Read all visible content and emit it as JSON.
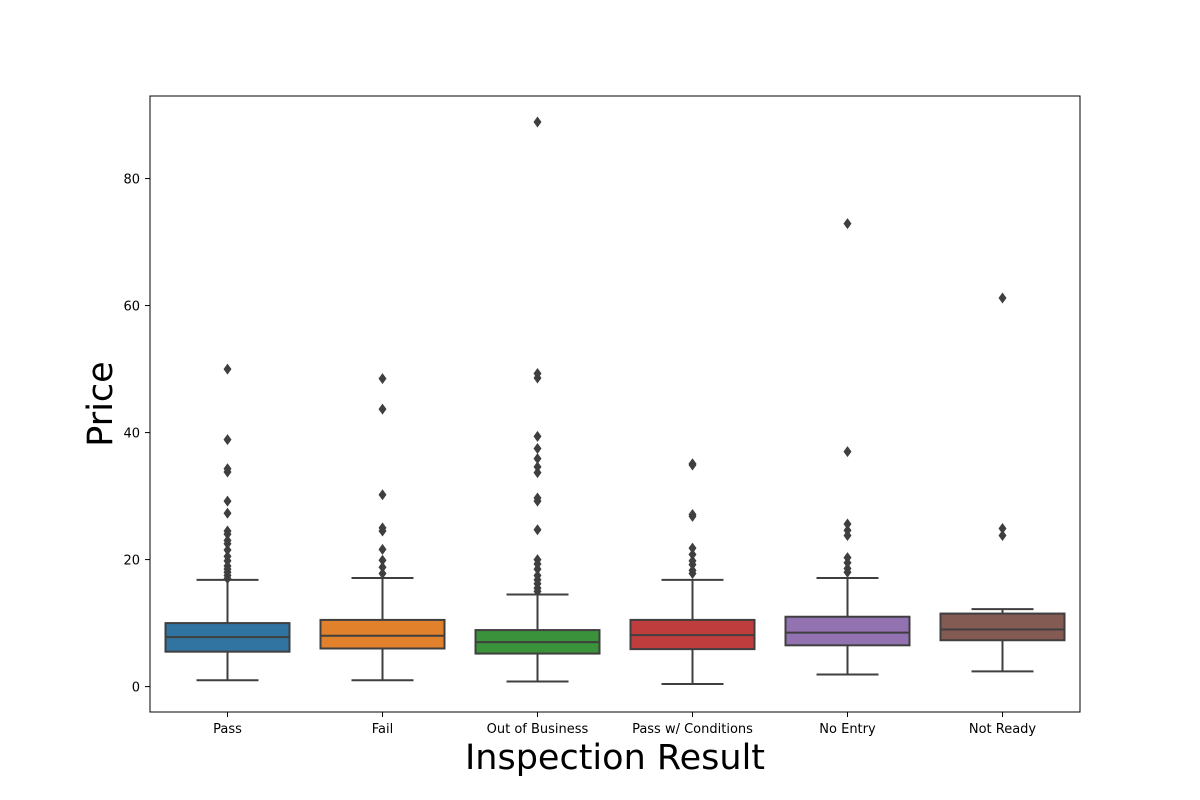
{
  "chart_data": {
    "type": "box",
    "title": "",
    "xlabel": "Inspection Result",
    "ylabel": "Price",
    "ylim": [
      -4,
      93
    ],
    "yticks": [
      0,
      20,
      40,
      60,
      80
    ],
    "grid": false,
    "categories": [
      "Pass",
      "Fail",
      "Out of Business",
      "Pass w/ Conditions",
      "No Entry",
      "Not Ready"
    ],
    "colors": [
      "#3274a1",
      "#e1812c",
      "#3a923a",
      "#c03d3e",
      "#9372b2",
      "#845b53"
    ],
    "edge_color": "#3f3f3f",
    "boxes": [
      {
        "whisker_low": 1.0,
        "q1": 5.5,
        "median": 7.8,
        "q3": 10.0,
        "whisker_high": 16.8,
        "outliers": [
          17.0,
          17.5,
          18.0,
          18.5,
          19.0,
          19.8,
          20.5,
          21.5,
          22.5,
          23.0,
          24.0,
          24.5,
          27.3,
          29.2,
          33.8,
          34.3,
          38.9,
          50.0
        ]
      },
      {
        "whisker_low": 1.0,
        "q1": 6.0,
        "median": 8.0,
        "q3": 10.5,
        "whisker_high": 17.1,
        "outliers": [
          17.8,
          18.8,
          19.9,
          21.6,
          24.5,
          25.0,
          30.2,
          43.7,
          48.5
        ]
      },
      {
        "whisker_low": 0.8,
        "q1": 5.2,
        "median": 7.0,
        "q3": 8.9,
        "whisker_high": 14.5,
        "outliers": [
          15.0,
          15.5,
          16.2,
          16.8,
          17.5,
          18.5,
          19.3,
          20.0,
          24.7,
          29.2,
          29.7,
          33.7,
          34.6,
          35.9,
          37.5,
          39.4,
          48.6,
          49.3,
          88.9
        ]
      },
      {
        "whisker_low": 0.4,
        "q1": 5.9,
        "median": 8.1,
        "q3": 10.5,
        "whisker_high": 16.8,
        "outliers": [
          17.8,
          18.3,
          19.2,
          19.8,
          20.8,
          21.8,
          26.8,
          27.1,
          34.9,
          35.1
        ]
      },
      {
        "whisker_low": 1.9,
        "q1": 6.5,
        "median": 8.5,
        "q3": 11.0,
        "whisker_high": 17.1,
        "outliers": [
          18.0,
          18.6,
          19.5,
          20.3,
          23.8,
          24.6,
          25.6,
          37.0,
          72.9
        ]
      },
      {
        "whisker_low": 2.4,
        "q1": 7.3,
        "median": 9.0,
        "q3": 11.5,
        "whisker_high": 12.2,
        "outliers": [
          23.8,
          24.9,
          61.2
        ]
      }
    ]
  }
}
